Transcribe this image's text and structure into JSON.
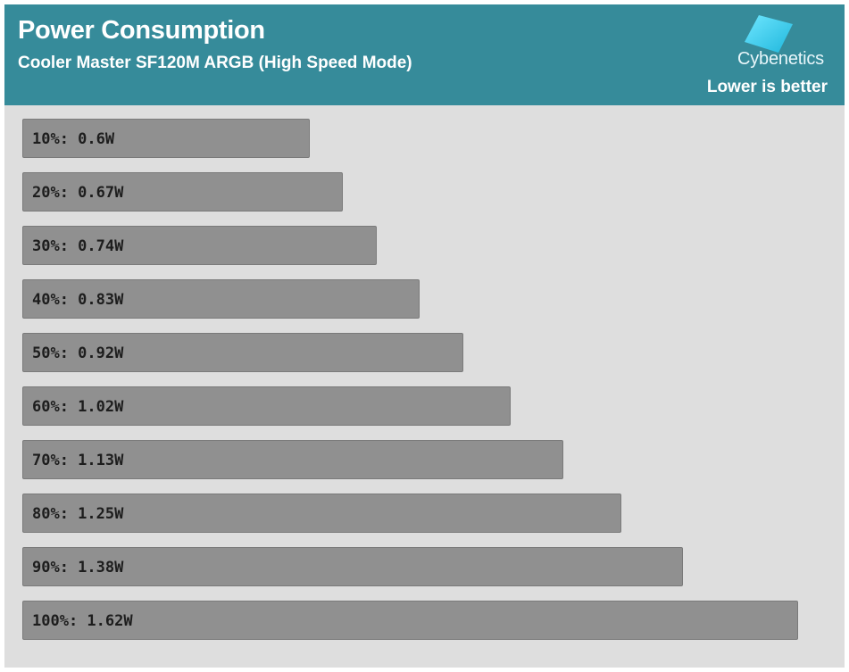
{
  "header": {
    "title": "Power Consumption",
    "subtitle": "Cooler Master SF120M ARGB (High Speed Mode)",
    "logo_text": "Cybenetics",
    "note": "Lower is better"
  },
  "colors": {
    "header_bg": "#368b9a",
    "plot_bg": "#dedede",
    "bar_fill": "#909090",
    "logo_accent": "#38d2f0"
  },
  "chart_data": {
    "type": "bar",
    "orientation": "horizontal",
    "title": "Power Consumption",
    "subtitle": "Cooler Master SF120M ARGB (High Speed Mode)",
    "categories": [
      "10%",
      "20%",
      "30%",
      "40%",
      "50%",
      "60%",
      "70%",
      "80%",
      "90%",
      "100%"
    ],
    "values": [
      0.6,
      0.67,
      0.74,
      0.83,
      0.92,
      1.02,
      1.13,
      1.25,
      1.38,
      1.62
    ],
    "labels": [
      "10%: 0.6W",
      "20%: 0.67W",
      "30%: 0.74W",
      "40%: 0.83W",
      "50%: 0.92W",
      "60%: 1.02W",
      "70%: 1.13W",
      "80%: 1.25W",
      "90%: 1.38W",
      "100%: 1.62W"
    ],
    "unit": "W",
    "annotation": "Lower is better",
    "grid": false,
    "legend": "none"
  }
}
